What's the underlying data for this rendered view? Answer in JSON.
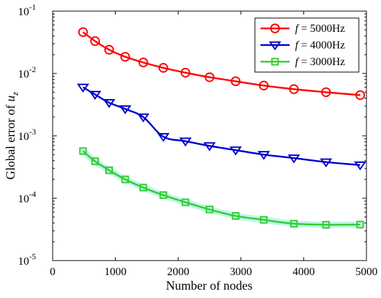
{
  "chart_data": {
    "type": "line",
    "xlabel": "Number of nodes",
    "ylabel_main": "Global error of ",
    "ylabel_var": "u",
    "ylabel_sub": "z",
    "xlim": [
      0,
      5000
    ],
    "ylim": [
      1e-05,
      0.1
    ],
    "yscale": "log",
    "grid": false,
    "legend_position": "top-right",
    "x_ticks": [
      0,
      1000,
      2000,
      3000,
      4000,
      5000
    ],
    "x_tick_labels": [
      "0",
      "1000",
      "2000",
      "3000",
      "4000",
      "5000"
    ],
    "y_ticks": [
      1e-05,
      0.0001,
      0.001,
      0.01,
      0.1
    ],
    "y_tick_labels": [
      {
        "base": "10",
        "exp": "-5"
      },
      {
        "base": "10",
        "exp": "-4"
      },
      {
        "base": "10",
        "exp": "-3"
      },
      {
        "base": "10",
        "exp": "-2"
      },
      {
        "base": "10",
        "exp": "-1"
      }
    ],
    "series": [
      {
        "name": "f = 5000Hz",
        "legend_var": "f",
        "legend_rest": " = 5000Hz",
        "color": "#ff0000",
        "marker": "circle",
        "x": [
          484,
          676,
          900,
          1156,
          1444,
          1764,
          2116,
          2500,
          2916,
          3364,
          3844,
          4356,
          4900
        ],
        "y": [
          0.046,
          0.033,
          0.024,
          0.0185,
          0.015,
          0.0123,
          0.0103,
          0.0087,
          0.0075,
          0.0064,
          0.0056,
          0.005,
          0.0045
        ]
      },
      {
        "name": "f = 4000Hz",
        "legend_var": "f",
        "legend_rest": " = 4000Hz",
        "color": "#0000cc",
        "marker": "triangle-down",
        "x": [
          484,
          676,
          900,
          1156,
          1444,
          1764,
          2116,
          2500,
          2916,
          3364,
          3844,
          4356,
          4900
        ],
        "y": [
          0.006,
          0.0046,
          0.0034,
          0.0027,
          0.002,
          0.00097,
          0.00082,
          0.00069,
          0.00059,
          0.0005,
          0.00044,
          0.00038,
          0.00034
        ]
      },
      {
        "name": "f = 3000Hz",
        "legend_var": "f",
        "legend_rest": " = 3000Hz",
        "color": "#33cc33",
        "marker": "square",
        "x": [
          484,
          676,
          900,
          1156,
          1444,
          1764,
          2116,
          2500,
          2916,
          3364,
          3844,
          4356,
          4900
        ],
        "y": [
          0.00057,
          0.00039,
          0.00028,
          0.0002,
          0.000148,
          0.000112,
          8.6e-05,
          6.6e-05,
          5.2e-05,
          4.5e-05,
          3.9e-05,
          3.75e-05,
          3.78e-05
        ]
      }
    ]
  }
}
